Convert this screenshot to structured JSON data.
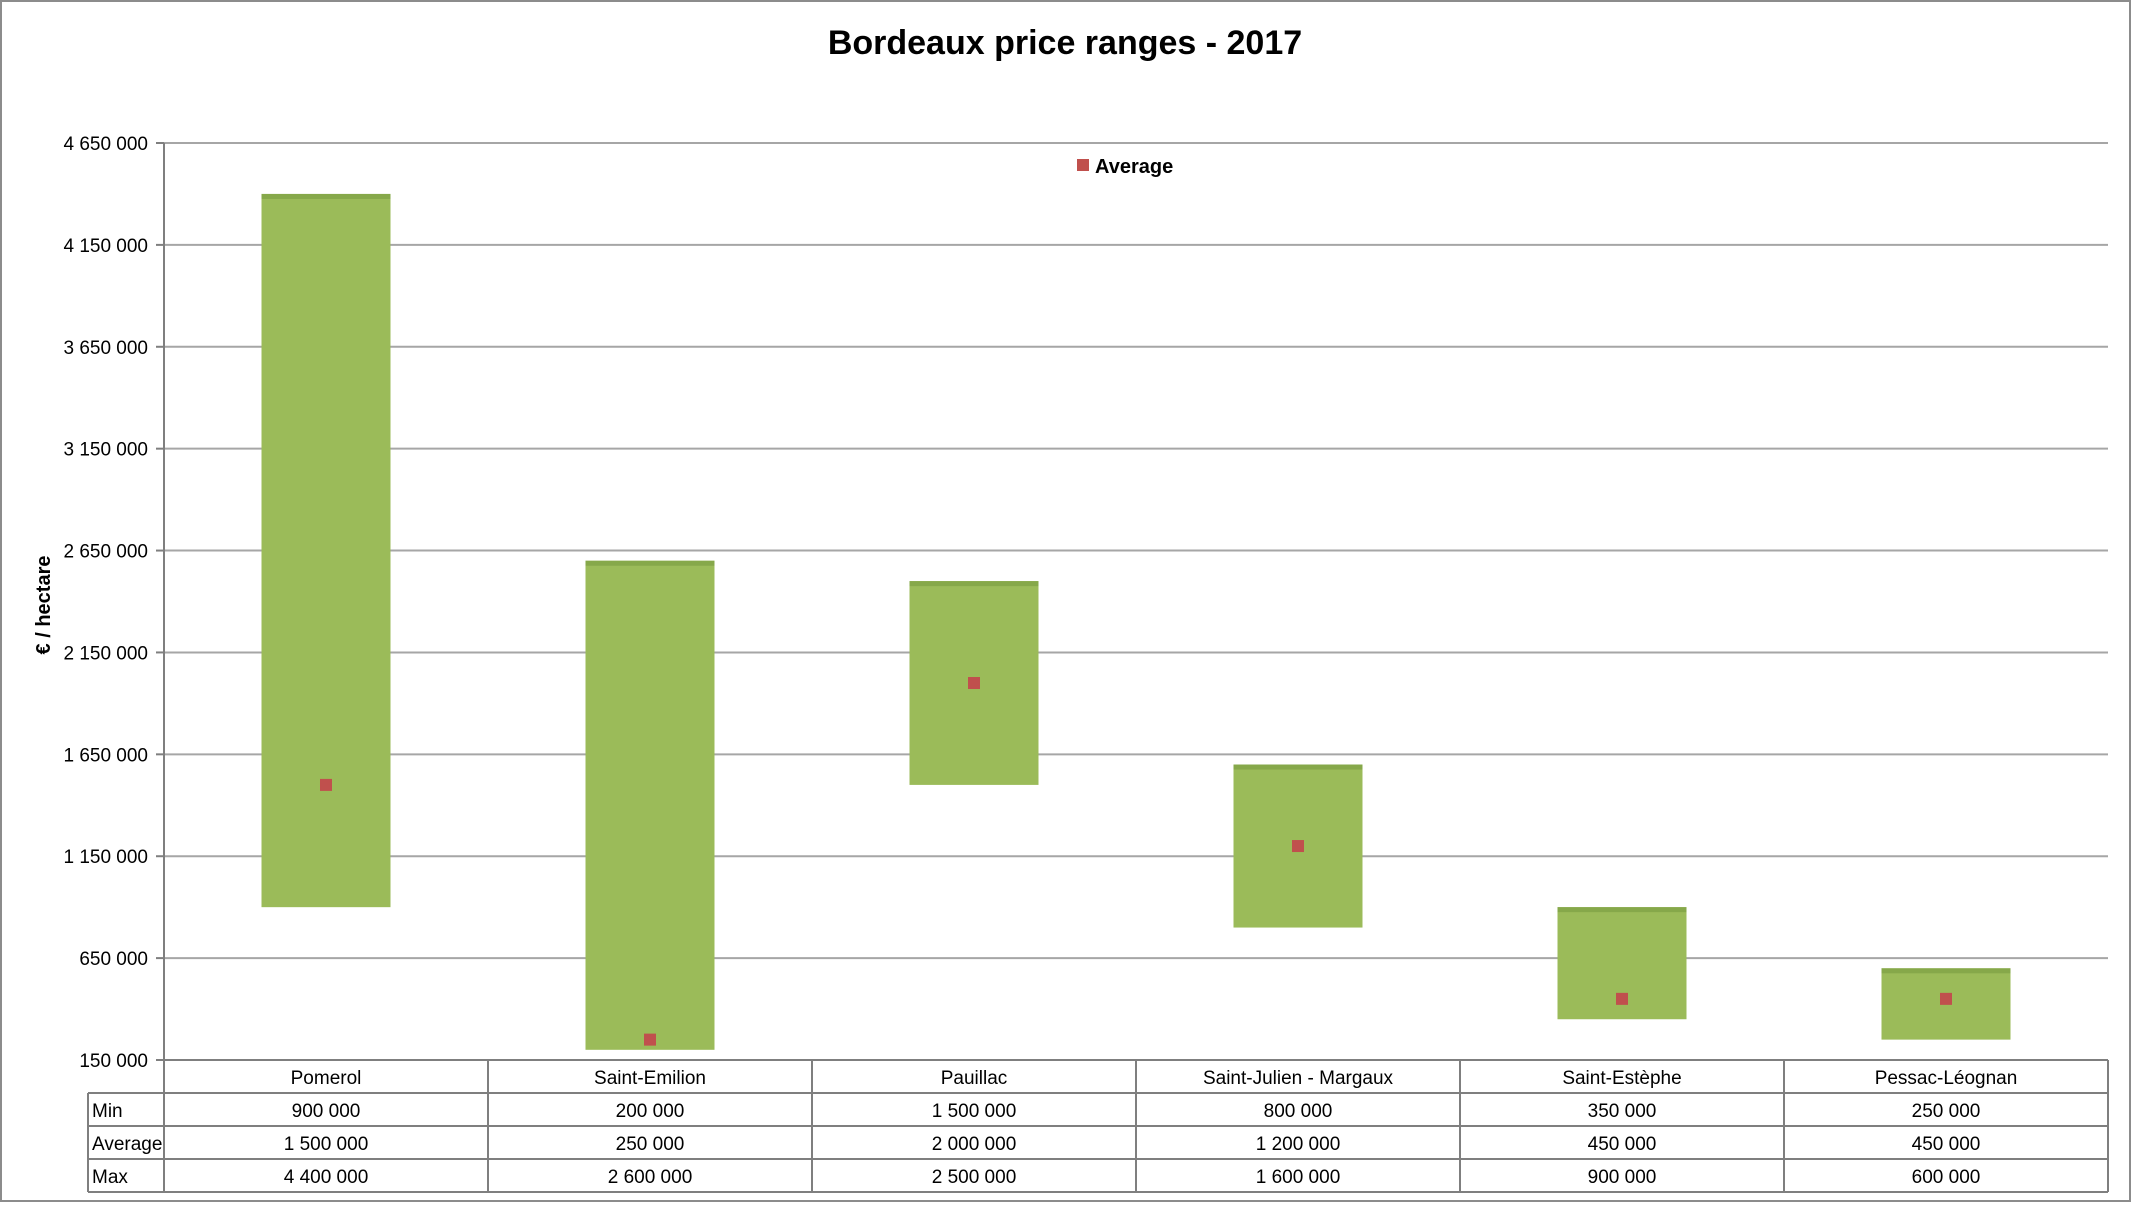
{
  "chart_data": {
    "type": "bar",
    "subtype": "floating-range-with-average-marker",
    "title": "Bordeaux price ranges - 2017",
    "ylabel": "€ / hectare",
    "xlabel": "",
    "ylim": [
      150000,
      4650000
    ],
    "yticks": [
      150000,
      650000,
      1150000,
      1650000,
      2150000,
      2650000,
      3150000,
      3650000,
      4150000,
      4650000
    ],
    "ytick_labels": [
      "150 000",
      "650 000",
      "1 150 000",
      "1 650 000",
      "2 150 000",
      "2 650 000",
      "3 150 000",
      "3 650 000",
      "4 150 000",
      "4 650 000"
    ],
    "grid": true,
    "legend": {
      "placement": "top-center",
      "entries": [
        "Average"
      ]
    },
    "categories": [
      "Pomerol",
      "Saint-Emilion",
      "Pauillac",
      "Saint-Julien - Margaux",
      "Saint-Estèphe",
      "Pessac-Léognan"
    ],
    "series": [
      {
        "name": "Min",
        "values": [
          900000,
          200000,
          1500000,
          800000,
          350000,
          250000
        ]
      },
      {
        "name": "Average",
        "values": [
          1500000,
          250000,
          2000000,
          1200000,
          450000,
          450000
        ]
      },
      {
        "name": "Max",
        "values": [
          4400000,
          2600000,
          2500000,
          1600000,
          900000,
          600000
        ]
      }
    ],
    "table": {
      "row_labels": [
        "Min",
        "Average",
        "Max"
      ],
      "cells": [
        [
          "900 000",
          "200 000",
          "1 500 000",
          "800 000",
          "350 000",
          "250 000"
        ],
        [
          "1 500 000",
          "250 000",
          "2 000 000",
          "1 200 000",
          "450 000",
          "450 000"
        ],
        [
          "4 400 000",
          "2 600 000",
          "2 500 000",
          "1 600 000",
          "900 000",
          "600 000"
        ]
      ]
    },
    "colors": {
      "range_bar": "#9bbb59",
      "range_bar_top": "#86a84a",
      "average_marker": "#c0504d",
      "grid": "#a6a6a6"
    }
  }
}
